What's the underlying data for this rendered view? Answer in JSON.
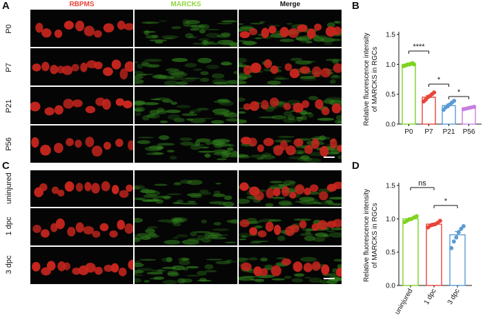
{
  "figure": {
    "panel_labels": [
      "A",
      "B",
      "C",
      "D"
    ],
    "columns": {
      "rbpms": {
        "label": "RBPMS",
        "color": "#e8453a"
      },
      "marcks": {
        "label": "MARCKS",
        "color": "#8fd63e"
      },
      "merge": {
        "label": "Merge",
        "color": "#111111"
      }
    },
    "panel_a_rows": [
      "P0",
      "P7",
      "P21",
      "P56"
    ],
    "panel_c_rows": [
      "uninjured",
      "1 dpc",
      "3 dpc"
    ]
  },
  "chart_data": [
    {
      "panel": "B",
      "type": "bar",
      "categories": [
        "P0",
        "P7",
        "P21",
        "P56"
      ],
      "values": [
        1.0,
        0.45,
        0.31,
        0.27
      ],
      "points": [
        [
          0.97,
          0.98,
          0.99,
          1.0,
          1.0,
          1.01,
          1.02,
          1.0
        ],
        [
          0.38,
          0.41,
          0.45,
          0.47,
          0.5,
          0.53
        ],
        [
          0.24,
          0.28,
          0.3,
          0.33,
          0.36,
          0.39
        ],
        [
          0.25,
          0.26,
          0.27,
          0.28,
          0.29
        ]
      ],
      "errors": [
        0.01,
        0.03,
        0.025,
        0.01
      ],
      "colors": [
        "#7ed321",
        "#e8453a",
        "#5b9bd5",
        "#c77ddf"
      ],
      "ylabel": "Relative fluorescence intensity of MARCKS in RGCs",
      "ylabel_lines": [
        "Relative fluorescence intensity",
        "of MARCKS in RGCs"
      ],
      "ylim": [
        0,
        1.5
      ],
      "yticks": [
        "0.0",
        "0.5",
        "1.0",
        "1.5"
      ],
      "significance": [
        {
          "from": 0,
          "to": 1,
          "label": "****"
        },
        {
          "from": 1,
          "to": 2,
          "label": "*"
        },
        {
          "from": 2,
          "to": 3,
          "label": "*"
        }
      ]
    },
    {
      "panel": "D",
      "type": "bar",
      "categories": [
        "uninjured",
        "1 dpc",
        "3 dpc"
      ],
      "values": [
        1.0,
        0.92,
        0.76
      ],
      "points": [
        [
          0.95,
          0.97,
          0.99,
          1.0,
          1.02,
          1.04
        ],
        [
          0.87,
          0.9,
          0.91,
          0.92,
          0.94,
          0.97
        ],
        [
          0.56,
          0.66,
          0.72,
          0.8,
          0.85,
          0.89
        ]
      ],
      "errors": [
        0.015,
        0.015,
        0.05
      ],
      "colors": [
        "#7ed321",
        "#e8453a",
        "#5b9bd5"
      ],
      "ylabel": "Relative fluorescence intensity of MARCKS in RGCs",
      "ylabel_lines": [
        "Relative fluorescence intensity",
        "of MARCKS in RGCs"
      ],
      "ylim": [
        0,
        1.5
      ],
      "yticks": [
        "0.0",
        "0.5",
        "1.0",
        "1.5"
      ],
      "significance": [
        {
          "from": 0,
          "to": 1,
          "label": "ns"
        },
        {
          "from": 1,
          "to": 2,
          "label": "*"
        }
      ]
    }
  ]
}
